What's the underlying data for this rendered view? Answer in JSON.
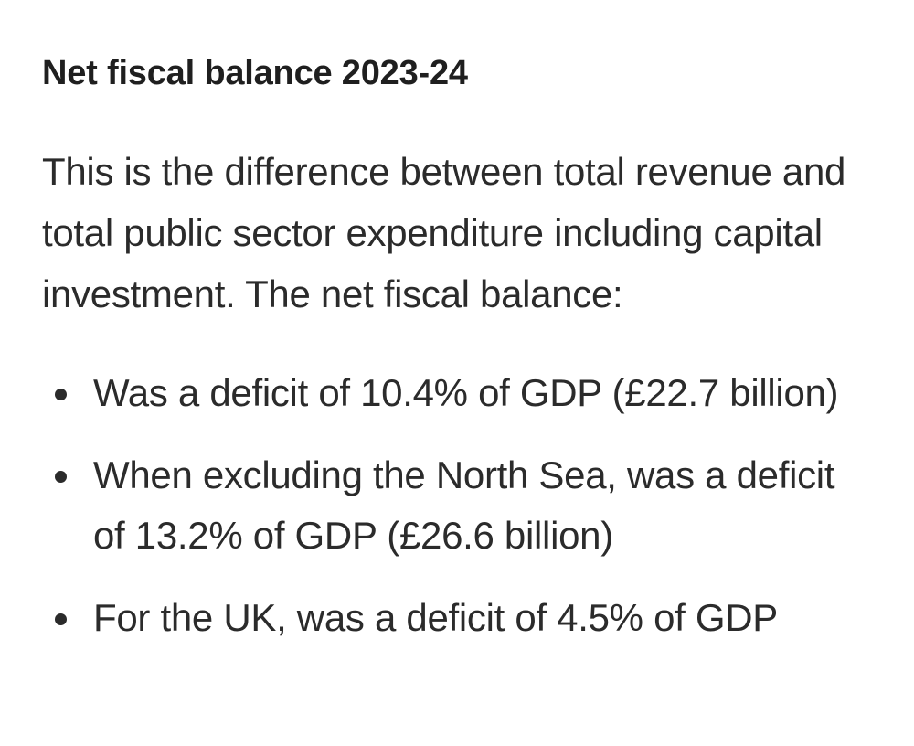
{
  "section": {
    "heading": "Net fiscal balance 2023-24",
    "intro": "This is the difference between total revenue and total public sector expenditure including capital investment. The net fiscal balance:",
    "bullets": [
      "Was a deficit of 10.4% of GDP (£22.7 billion)",
      "When excluding the North Sea, was a deficit of 13.2% of GDP (£26.6 billion)",
      "For the UK, was a deficit of 4.5% of GDP"
    ]
  }
}
